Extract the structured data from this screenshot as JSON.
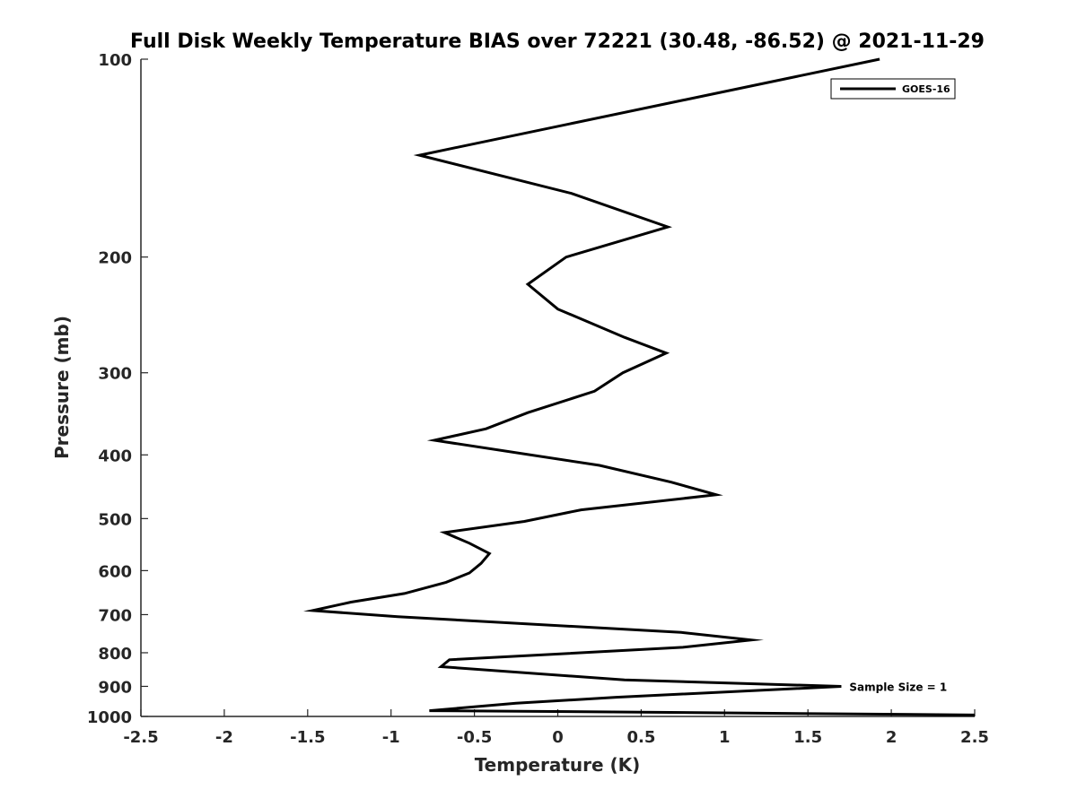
{
  "chart_data": {
    "type": "line",
    "title": "Full Disk Weekly Temperature BIAS over 72221 (30.48, -86.52) @ 2021-11-29",
    "xlabel": "Temperature (K)",
    "ylabel": "Pressure (mb)",
    "xlim": [
      -2.5,
      2.5
    ],
    "ylim": [
      100,
      1000
    ],
    "y_scale": "log",
    "y_reversed": true,
    "x_ticks": [
      "-2.5",
      "-2",
      "-1.5",
      "-1",
      "-0.5",
      "0",
      "0.5",
      "1",
      "1.5",
      "2",
      "2.5"
    ],
    "x_tick_values": [
      -2.5,
      -2,
      -1.5,
      -1,
      -0.5,
      0,
      0.5,
      1,
      1.5,
      2,
      2.5
    ],
    "y_ticks": [
      "100",
      "200",
      "300",
      "400",
      "500",
      "600",
      "700",
      "800",
      "900",
      "1000"
    ],
    "y_tick_values": [
      100,
      200,
      300,
      400,
      500,
      600,
      700,
      800,
      900,
      1000
    ],
    "grid": false,
    "legend": {
      "position": "top-right",
      "entries": [
        "GOES-16"
      ]
    },
    "annotation": "Sample Size = 1",
    "annotation_at": {
      "x": 1.7,
      "p": 900
    },
    "series": [
      {
        "name": "GOES-16",
        "color": "#000000",
        "x": [
          1.93,
          -0.83,
          0.08,
          0.66,
          0.05,
          -0.18,
          0.0,
          0.4,
          0.65,
          0.39,
          0.22,
          -0.18,
          -0.43,
          -0.74,
          0.25,
          0.68,
          0.95,
          0.14,
          -0.2,
          -0.68,
          -0.53,
          -0.41,
          -0.46,
          -0.53,
          -0.67,
          -0.92,
          -1.24,
          -1.47,
          -0.96,
          0.74,
          1.16,
          0.75,
          -0.65,
          -0.7,
          0.4,
          1.7,
          0.35,
          -0.25,
          -0.77,
          0.5,
          2.5
        ],
        "y": [
          100,
          140,
          160,
          180,
          200,
          220,
          240,
          265,
          280,
          300,
          320,
          345,
          365,
          380,
          415,
          440,
          460,
          485,
          505,
          525,
          545,
          565,
          585,
          605,
          625,
          650,
          670,
          690,
          705,
          745,
          765,
          785,
          820,
          840,
          880,
          900,
          935,
          955,
          980,
          985,
          995
        ]
      }
    ]
  }
}
